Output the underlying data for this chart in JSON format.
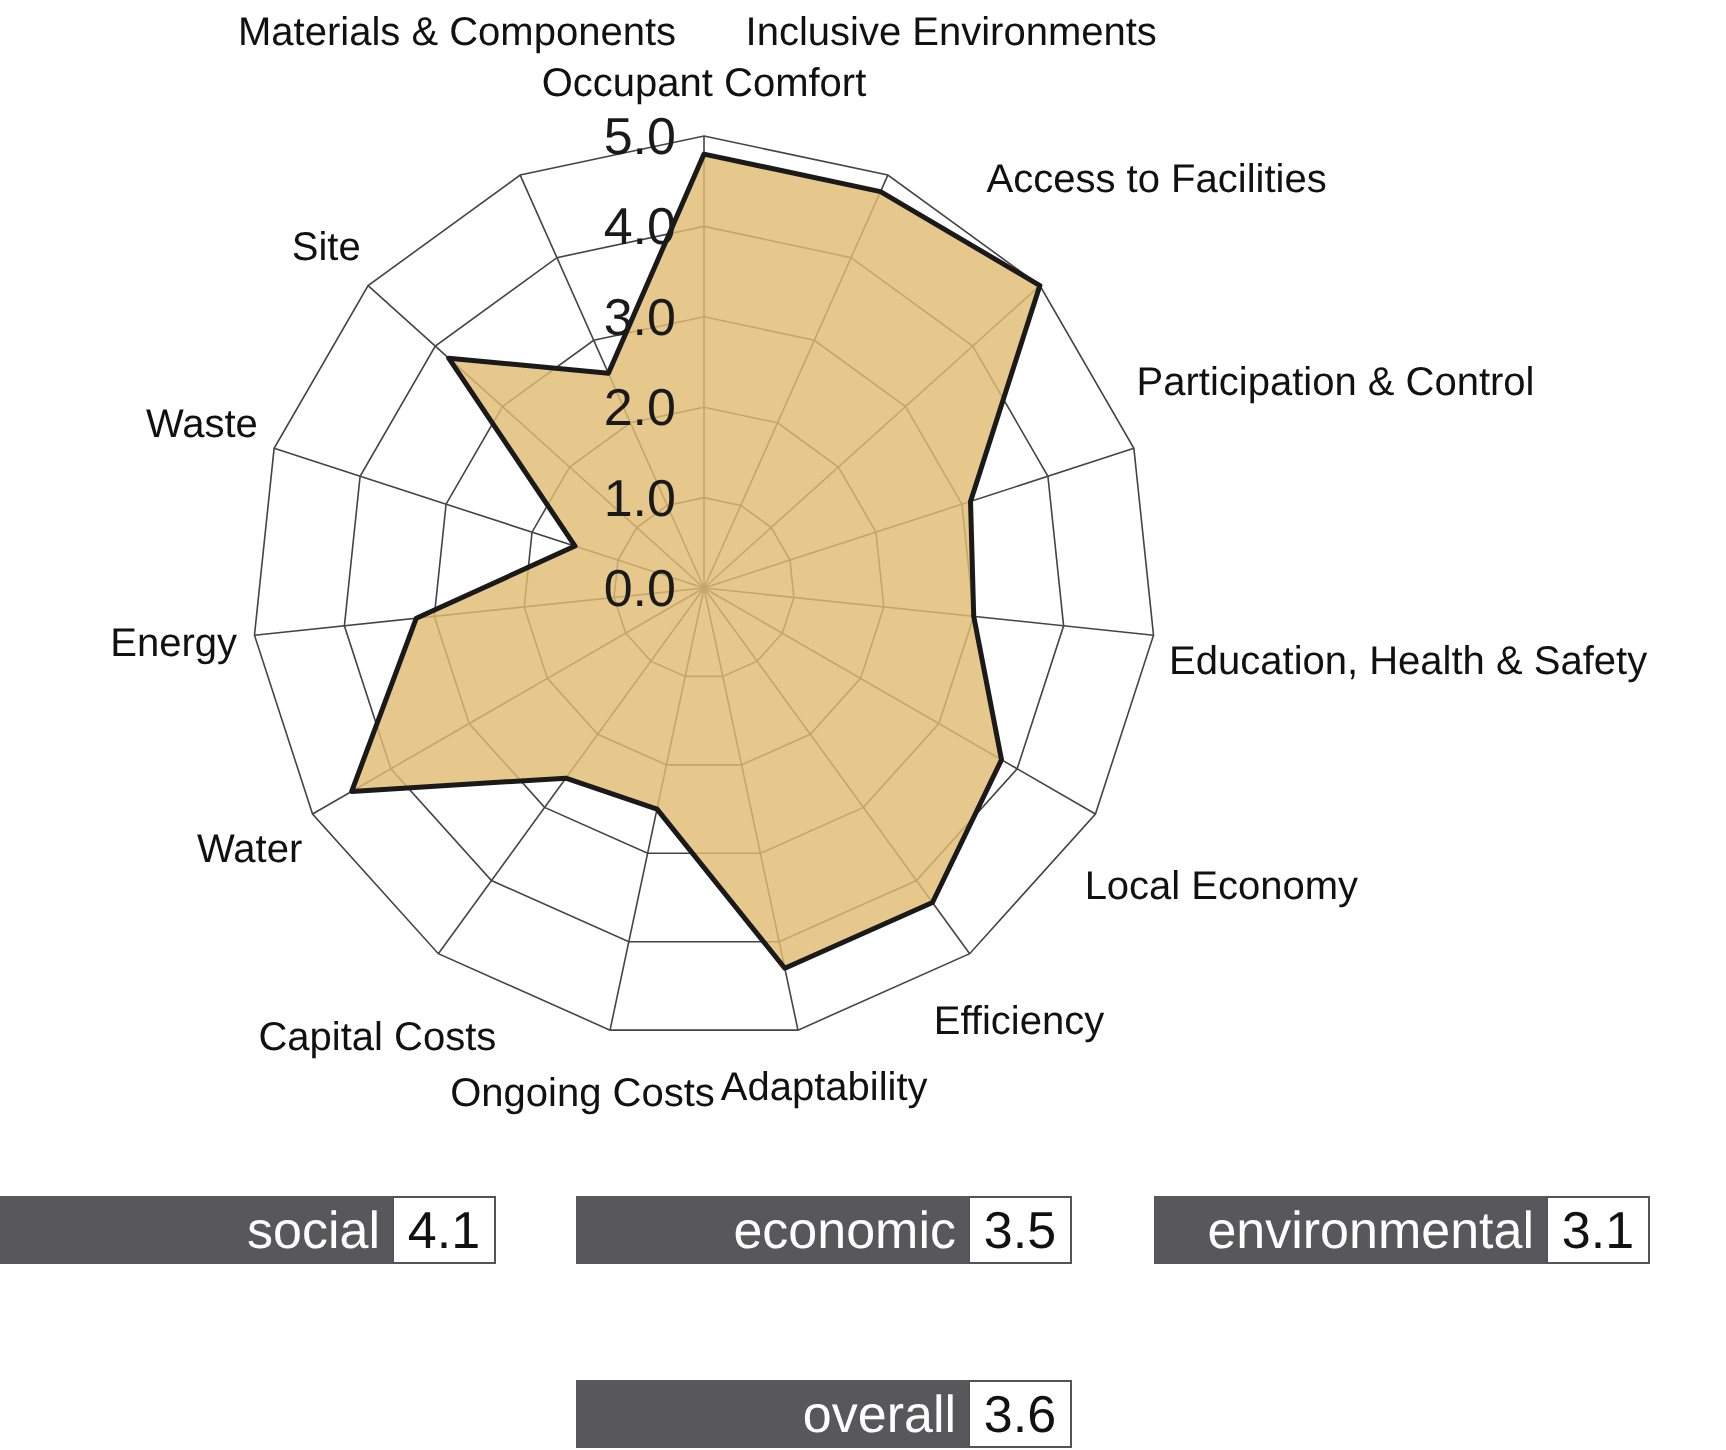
{
  "chart_data": [
    {
      "type": "radar",
      "categories": [
        "Occupant Comfort",
        "Inclusive Environments",
        "Access to Facilities",
        "Participation & Control",
        "Education, Health & Safety",
        "Local Economy",
        "Efficiency",
        "Adaptability",
        "Ongoing Costs",
        "Capital Costs",
        "Water",
        "Energy",
        "Waste",
        "Site",
        "Materials & Components"
      ],
      "series": [
        {
          "color": "#e0bc74",
          "values": [
            4.8,
            4.8,
            5.0,
            3.1,
            3.0,
            3.8,
            4.3,
            4.3,
            2.5,
            2.6,
            4.5,
            3.2,
            1.5,
            3.8,
            2.6
          ]
        }
      ],
      "ylim": [
        0,
        5
      ],
      "yticks": [
        {
          "value": 0,
          "label": "0.0"
        },
        {
          "value": 1,
          "label": "1.0"
        },
        {
          "value": 2,
          "label": "2.0"
        },
        {
          "value": 3,
          "label": "3.0"
        },
        {
          "value": 4,
          "label": "4.0"
        },
        {
          "value": 5,
          "label": "5.0"
        }
      ],
      "grid": true
    },
    {
      "type": "other",
      "categories": [
        "social",
        "economic",
        "environmental",
        "overall"
      ],
      "values": [
        4.1,
        3.5,
        3.1,
        3.6
      ],
      "data_labels": true
    }
  ]
}
